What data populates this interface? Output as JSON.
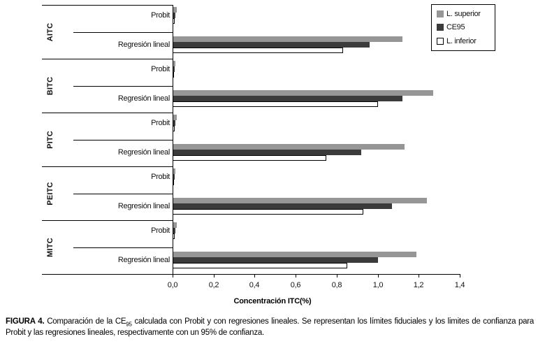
{
  "figure": {
    "caption_label": "FIGURA 4.",
    "caption_before_sub": " Comparación de la CE",
    "caption_sub": "95",
    "caption_after_sub": " calculada con Probit y con regresiones lineales. Se representan los límites fiduciales y los limites de confianza para Probit y las regresiones lineales, respectivamente con un 95% de confianza."
  },
  "colors": {
    "bar_upper_limit": "#969696",
    "bar_ce95": "#3b3b3b",
    "bar_lower_limit": "#ffffff",
    "axis_line": "#000000"
  },
  "chart_data": {
    "type": "bar",
    "orientation": "horizontal",
    "xlabel": "Concentración ITC(%)",
    "xlim": [
      0,
      1.4
    ],
    "xtick_step": 0.2,
    "xtick_labels": [
      "0,0",
      "0,2",
      "0,4",
      "0,6",
      "0,8",
      "1,0",
      "1,2",
      "1,4"
    ],
    "grid": false,
    "legend_position": "top-right",
    "series_order": [
      "L. superior",
      "CE95",
      "L. inferior"
    ],
    "legend": [
      {
        "label": "L. superior",
        "color": "#969696",
        "style": "solid"
      },
      {
        "label": "CE95",
        "color": "#3b3b3b",
        "style": "solid"
      },
      {
        "label": "L. inferior",
        "color": "#ffffff",
        "style": "outline"
      }
    ],
    "groups": [
      {
        "name": "AITC",
        "rows": [
          {
            "label": "Probit",
            "values": [
              0.02,
              0.015,
              0.01
            ]
          },
          {
            "label": "Regresión lineal",
            "values": [
              1.12,
              0.96,
              0.83
            ]
          }
        ]
      },
      {
        "name": "BITC",
        "rows": [
          {
            "label": "Probit",
            "values": [
              0.015,
              0.01,
              0.005
            ]
          },
          {
            "label": "Regresión lineal",
            "values": [
              1.27,
              1.12,
              1.0
            ]
          }
        ]
      },
      {
        "name": "PITC",
        "rows": [
          {
            "label": "Probit",
            "values": [
              0.02,
              0.015,
              0.01
            ]
          },
          {
            "label": "Regresión lineal",
            "values": [
              1.13,
              0.92,
              0.75
            ]
          }
        ]
      },
      {
        "name": "PEITC",
        "rows": [
          {
            "label": "Probit",
            "values": [
              0.015,
              0.01,
              0.005
            ]
          },
          {
            "label": "Regresión lineal",
            "values": [
              1.24,
              1.07,
              0.93
            ]
          }
        ]
      },
      {
        "name": "MITC",
        "rows": [
          {
            "label": "Probit",
            "values": [
              0.02,
              0.015,
              0.01
            ]
          },
          {
            "label": "Regresión lineal",
            "values": [
              1.19,
              1.0,
              0.85
            ]
          }
        ]
      }
    ]
  }
}
